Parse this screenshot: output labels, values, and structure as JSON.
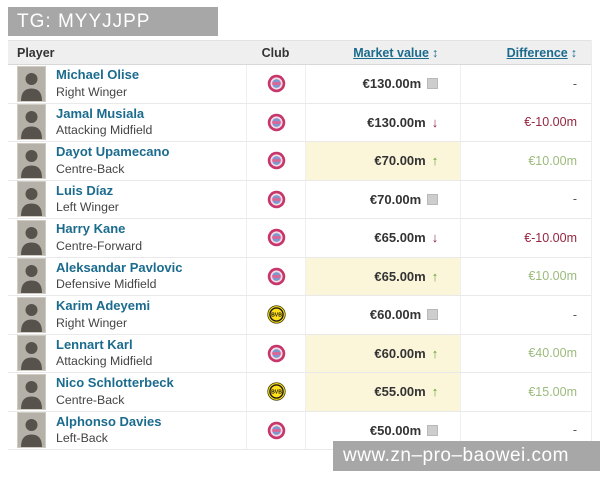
{
  "banner": {
    "text": "TG: MYYJJPP"
  },
  "watermark": {
    "text": "www.zn–pro–baowei.com"
  },
  "icons": {
    "trend_up": "↑",
    "trend_down": "↓",
    "sort": "↕"
  },
  "colors": {
    "link_teal": "#1b6b8e",
    "highlight_yellow": "#fbf5da",
    "green_arrow": "#5ea02c",
    "green_text": "#9cba7c",
    "red_text": "#8e1e3e",
    "banner_gray": "#a7a7a7",
    "bayern_red": "#c8356a",
    "dortmund_yellow": "#ffe01a"
  },
  "table": {
    "headers": {
      "player": "Player",
      "club": "Club",
      "market_value": "Market value",
      "difference": "Difference"
    },
    "rows": [
      {
        "name": "Michael Olise",
        "position": "Right Winger",
        "club": "Bayern Munich",
        "club_id": "bayern",
        "market_value": "€130.00m",
        "trend": "steady",
        "difference": "-",
        "diff_color": "none",
        "highlight": false
      },
      {
        "name": "Jamal Musiala",
        "position": "Attacking Midfield",
        "club": "Bayern Munich",
        "club_id": "bayern",
        "market_value": "€130.00m",
        "trend": "down",
        "difference": "€-10.00m",
        "diff_color": "red",
        "highlight": false
      },
      {
        "name": "Dayot Upamecano",
        "position": "Centre-Back",
        "club": "Bayern Munich",
        "club_id": "bayern",
        "market_value": "€70.00m",
        "trend": "up",
        "difference": "€10.00m",
        "diff_color": "green",
        "highlight": true
      },
      {
        "name": "Luis Díaz",
        "position": "Left Winger",
        "club": "Bayern Munich",
        "club_id": "bayern",
        "market_value": "€70.00m",
        "trend": "steady",
        "difference": "-",
        "diff_color": "none",
        "highlight": false
      },
      {
        "name": "Harry Kane",
        "position": "Centre-Forward",
        "club": "Bayern Munich",
        "club_id": "bayern",
        "market_value": "€65.00m",
        "trend": "down",
        "difference": "€-10.00m",
        "diff_color": "red",
        "highlight": false
      },
      {
        "name": "Aleksandar Pavlovic",
        "position": "Defensive Midfield",
        "club": "Bayern Munich",
        "club_id": "bayern",
        "market_value": "€65.00m",
        "trend": "up",
        "difference": "€10.00m",
        "diff_color": "green",
        "highlight": true
      },
      {
        "name": "Karim Adeyemi",
        "position": "Right Winger",
        "club": "Borussia Dortmund",
        "club_id": "dortmund",
        "market_value": "€60.00m",
        "trend": "steady",
        "difference": "-",
        "diff_color": "none",
        "highlight": false
      },
      {
        "name": "Lennart Karl",
        "position": "Attacking Midfield",
        "club": "Bayern Munich",
        "club_id": "bayern",
        "market_value": "€60.00m",
        "trend": "up",
        "difference": "€40.00m",
        "diff_color": "green",
        "highlight": true
      },
      {
        "name": "Nico Schlotterbeck",
        "position": "Centre-Back",
        "club": "Borussia Dortmund",
        "club_id": "dortmund",
        "market_value": "€55.00m",
        "trend": "up",
        "difference": "€15.00m",
        "diff_color": "green",
        "highlight": true
      },
      {
        "name": "Alphonso Davies",
        "position": "Left-Back",
        "club": "Bayern Munich",
        "club_id": "bayern",
        "market_value": "€50.00m",
        "trend": "steady",
        "difference": "-",
        "diff_color": "none",
        "highlight": false
      }
    ]
  }
}
